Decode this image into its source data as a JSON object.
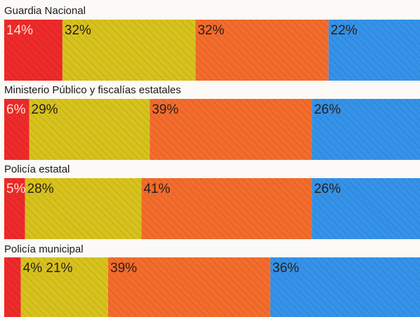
{
  "chart_data": {
    "type": "bar",
    "orientation": "horizontal",
    "stacked": true,
    "percent": true,
    "categories": [
      "Guardia Nacional",
      "Ministerio Público y fiscalías estatales",
      "Policía estatal",
      "Policía municipal"
    ],
    "series": [
      {
        "color": "#ee2a2a",
        "values": [
          14,
          6,
          5,
          4
        ],
        "labels": [
          "14%",
          "6%",
          "5%",
          ""
        ]
      },
      {
        "color": "#d7c21d",
        "values": [
          32,
          29,
          28,
          21
        ],
        "labels": [
          "32%",
          "29%",
          "28%",
          "4% 21%"
        ]
      },
      {
        "color": "#f36c2c",
        "values": [
          32,
          39,
          41,
          39
        ],
        "labels": [
          "32%",
          "39%",
          "41%",
          "39%"
        ]
      },
      {
        "color": "#3592e9",
        "values": [
          22,
          26,
          26,
          36
        ],
        "labels": [
          "22%",
          "26%",
          "26%",
          "36%"
        ]
      }
    ],
    "legend": "none",
    "grid": false,
    "xlim": [
      0,
      100
    ]
  }
}
